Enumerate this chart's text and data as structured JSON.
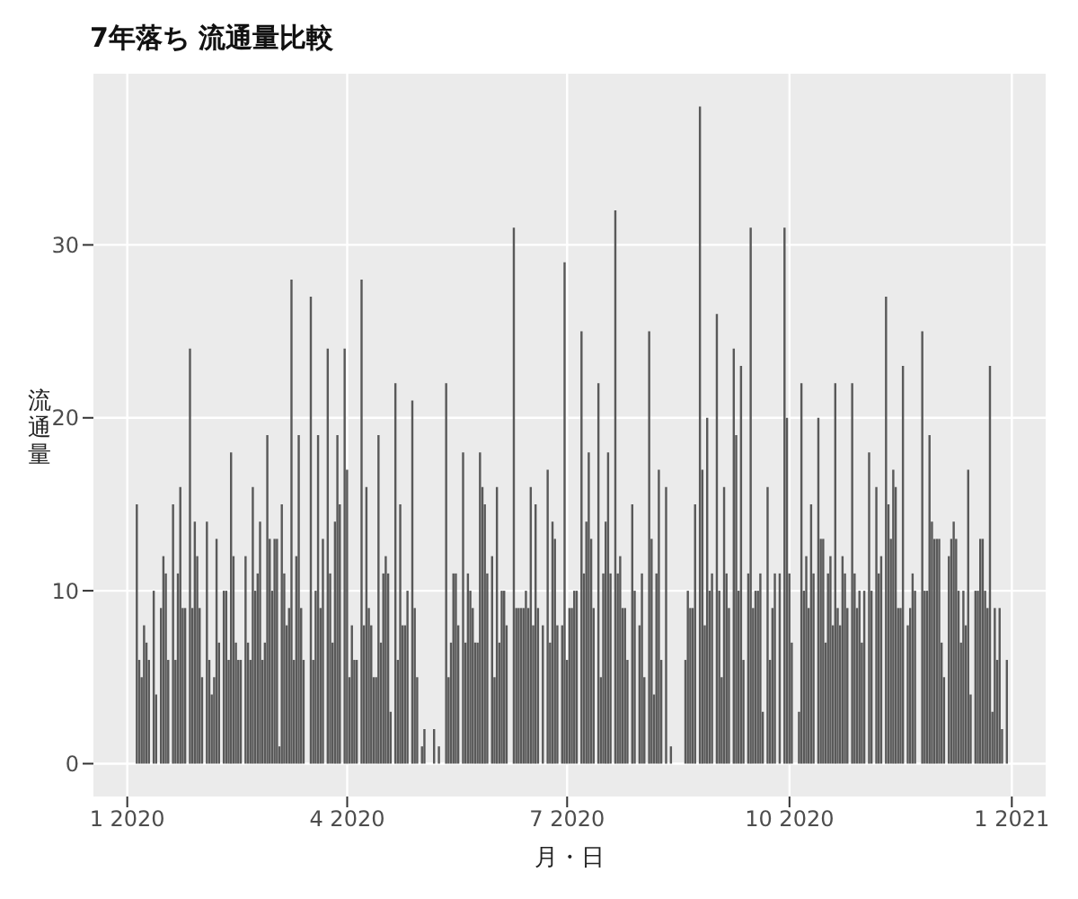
{
  "chart_data": {
    "type": "bar",
    "title": "7年落ち 流通量比較",
    "xlabel": "月・日",
    "ylabel": "流通量",
    "color": "#595959",
    "grid": true,
    "xlim": [
      "2019-12-18",
      "2021-01-15"
    ],
    "xticks": [
      {
        "value": "2020-01-01",
        "label": "1 2020"
      },
      {
        "value": "2020-04-01",
        "label": "4 2020"
      },
      {
        "value": "2020-07-01",
        "label": "7 2020"
      },
      {
        "value": "2020-10-01",
        "label": "10 2020"
      },
      {
        "value": "2021-01-01",
        "label": "1 2021"
      }
    ],
    "ylim": [
      -1.9,
      39.9
    ],
    "yticks": [
      0,
      10,
      20,
      30
    ],
    "x": [
      "2020-01-05",
      "2020-01-06",
      "2020-01-07",
      "2020-01-08",
      "2020-01-09",
      "2020-01-10",
      "2020-01-11",
      "2020-01-12",
      "2020-01-13",
      "2020-01-14",
      "2020-01-15",
      "2020-01-16",
      "2020-01-17",
      "2020-01-18",
      "2020-01-19",
      "2020-01-20",
      "2020-01-21",
      "2020-01-22",
      "2020-01-23",
      "2020-01-24",
      "2020-01-25",
      "2020-01-26",
      "2020-01-27",
      "2020-01-28",
      "2020-01-29",
      "2020-01-30",
      "2020-01-31",
      "2020-02-01",
      "2020-02-02",
      "2020-02-03",
      "2020-02-04",
      "2020-02-05",
      "2020-02-06",
      "2020-02-07",
      "2020-02-08",
      "2020-02-09",
      "2020-02-10",
      "2020-02-11",
      "2020-02-12",
      "2020-02-13",
      "2020-02-14",
      "2020-02-15",
      "2020-02-16",
      "2020-02-17",
      "2020-02-18",
      "2020-02-19",
      "2020-02-20",
      "2020-02-21",
      "2020-02-22",
      "2020-02-23",
      "2020-02-24",
      "2020-02-25",
      "2020-02-26",
      "2020-02-27",
      "2020-02-28",
      "2020-02-29",
      "2020-03-01",
      "2020-03-02",
      "2020-03-03",
      "2020-03-04",
      "2020-03-05",
      "2020-03-06",
      "2020-03-07",
      "2020-03-08",
      "2020-03-09",
      "2020-03-10",
      "2020-03-11",
      "2020-03-12",
      "2020-03-13",
      "2020-03-14",
      "2020-03-15",
      "2020-03-16",
      "2020-03-17",
      "2020-03-18",
      "2020-03-19",
      "2020-03-20",
      "2020-03-21",
      "2020-03-22",
      "2020-03-23",
      "2020-03-24",
      "2020-03-25",
      "2020-03-26",
      "2020-03-27",
      "2020-03-28",
      "2020-03-29",
      "2020-03-30",
      "2020-03-31",
      "2020-04-01",
      "2020-04-02",
      "2020-04-03",
      "2020-04-04",
      "2020-04-05",
      "2020-04-06",
      "2020-04-07",
      "2020-04-08",
      "2020-04-09",
      "2020-04-10",
      "2020-04-11",
      "2020-04-12",
      "2020-04-13",
      "2020-04-14",
      "2020-04-15",
      "2020-04-16",
      "2020-04-17",
      "2020-04-18",
      "2020-04-19",
      "2020-04-20",
      "2020-04-21",
      "2020-04-22",
      "2020-04-23",
      "2020-04-24",
      "2020-04-25",
      "2020-04-26",
      "2020-04-27",
      "2020-04-28",
      "2020-04-29",
      "2020-04-30",
      "2020-05-01",
      "2020-05-02",
      "2020-05-03",
      "2020-05-04",
      "2020-05-05",
      "2020-05-06",
      "2020-05-07",
      "2020-05-08",
      "2020-05-09",
      "2020-05-10",
      "2020-05-11",
      "2020-05-12",
      "2020-05-13",
      "2020-05-14",
      "2020-05-15",
      "2020-05-16",
      "2020-05-17",
      "2020-05-18",
      "2020-05-19",
      "2020-05-20",
      "2020-05-21",
      "2020-05-22",
      "2020-05-23",
      "2020-05-24",
      "2020-05-25",
      "2020-05-26",
      "2020-05-27",
      "2020-05-28",
      "2020-05-29",
      "2020-05-30",
      "2020-05-31",
      "2020-06-01",
      "2020-06-02",
      "2020-06-03",
      "2020-06-04",
      "2020-06-05",
      "2020-06-06",
      "2020-06-07",
      "2020-06-08",
      "2020-06-09",
      "2020-06-10",
      "2020-06-11",
      "2020-06-12",
      "2020-06-13",
      "2020-06-14",
      "2020-06-15",
      "2020-06-16",
      "2020-06-17",
      "2020-06-18",
      "2020-06-19",
      "2020-06-20",
      "2020-06-21",
      "2020-06-22",
      "2020-06-23",
      "2020-06-24",
      "2020-06-25",
      "2020-06-26",
      "2020-06-27",
      "2020-06-28",
      "2020-06-29",
      "2020-06-30",
      "2020-07-01",
      "2020-07-02",
      "2020-07-03",
      "2020-07-04",
      "2020-07-05",
      "2020-07-06",
      "2020-07-07",
      "2020-07-08",
      "2020-07-09",
      "2020-07-10",
      "2020-07-11",
      "2020-07-12",
      "2020-07-13",
      "2020-07-14",
      "2020-07-15",
      "2020-07-16",
      "2020-07-17",
      "2020-07-18",
      "2020-07-19",
      "2020-07-20",
      "2020-07-21",
      "2020-07-22",
      "2020-07-23",
      "2020-07-24",
      "2020-07-25",
      "2020-07-26",
      "2020-07-27",
      "2020-07-28",
      "2020-07-29",
      "2020-07-30",
      "2020-07-31",
      "2020-08-01",
      "2020-08-02",
      "2020-08-03",
      "2020-08-04",
      "2020-08-05",
      "2020-08-06",
      "2020-08-07",
      "2020-08-08",
      "2020-08-09",
      "2020-08-10",
      "2020-08-11",
      "2020-08-12",
      "2020-08-13",
      "2020-08-14",
      "2020-08-15",
      "2020-08-16",
      "2020-08-17",
      "2020-08-18",
      "2020-08-19",
      "2020-08-20",
      "2020-08-21",
      "2020-08-22",
      "2020-08-23",
      "2020-08-24",
      "2020-08-25",
      "2020-08-26",
      "2020-08-27",
      "2020-08-28",
      "2020-08-29",
      "2020-08-30",
      "2020-08-31",
      "2020-09-01",
      "2020-09-02",
      "2020-09-03",
      "2020-09-04",
      "2020-09-05",
      "2020-09-06",
      "2020-09-07",
      "2020-09-08",
      "2020-09-09",
      "2020-09-10",
      "2020-09-11",
      "2020-09-12",
      "2020-09-13",
      "2020-09-14",
      "2020-09-15",
      "2020-09-16",
      "2020-09-17",
      "2020-09-18",
      "2020-09-19",
      "2020-09-20",
      "2020-09-21",
      "2020-09-22",
      "2020-09-23",
      "2020-09-24",
      "2020-09-25",
      "2020-09-26",
      "2020-09-27",
      "2020-09-28",
      "2020-09-29",
      "2020-09-30",
      "2020-10-01",
      "2020-10-02",
      "2020-10-03",
      "2020-10-04",
      "2020-10-05",
      "2020-10-06",
      "2020-10-07",
      "2020-10-08",
      "2020-10-09",
      "2020-10-10",
      "2020-10-11",
      "2020-10-12",
      "2020-10-13",
      "2020-10-14",
      "2020-10-15",
      "2020-10-16",
      "2020-10-17",
      "2020-10-18",
      "2020-10-19",
      "2020-10-20",
      "2020-10-21",
      "2020-10-22",
      "2020-10-23",
      "2020-10-24",
      "2020-10-25",
      "2020-10-26",
      "2020-10-27",
      "2020-10-28",
      "2020-10-29",
      "2020-10-30",
      "2020-10-31",
      "2020-11-01",
      "2020-11-02",
      "2020-11-03",
      "2020-11-04",
      "2020-11-05",
      "2020-11-06",
      "2020-11-07",
      "2020-11-08",
      "2020-11-09",
      "2020-11-10",
      "2020-11-11",
      "2020-11-12",
      "2020-11-13",
      "2020-11-14",
      "2020-11-15",
      "2020-11-16",
      "2020-11-17",
      "2020-11-18",
      "2020-11-19",
      "2020-11-20",
      "2020-11-21",
      "2020-11-22",
      "2020-11-23",
      "2020-11-24",
      "2020-11-25",
      "2020-11-26",
      "2020-11-27",
      "2020-11-28",
      "2020-11-29",
      "2020-11-30",
      "2020-12-01",
      "2020-12-02",
      "2020-12-03",
      "2020-12-04",
      "2020-12-05",
      "2020-12-06",
      "2020-12-07",
      "2020-12-08",
      "2020-12-09",
      "2020-12-10",
      "2020-12-11",
      "2020-12-12",
      "2020-12-13",
      "2020-12-14",
      "2020-12-15",
      "2020-12-16",
      "2020-12-17",
      "2020-12-18",
      "2020-12-19",
      "2020-12-20",
      "2020-12-21",
      "2020-12-22",
      "2020-12-23",
      "2020-12-24",
      "2020-12-25",
      "2020-12-26",
      "2020-12-27",
      "2020-12-28",
      "2020-12-29",
      "2020-12-30"
    ],
    "values": [
      15,
      6,
      5,
      8,
      7,
      6,
      null,
      10,
      4,
      null,
      9,
      12,
      11,
      6,
      null,
      15,
      6,
      11,
      16,
      9,
      9,
      null,
      24,
      9,
      14,
      12,
      9,
      5,
      null,
      14,
      6,
      4,
      5,
      13,
      7,
      null,
      10,
      10,
      6,
      18,
      12,
      7,
      6,
      6,
      null,
      12,
      7,
      6,
      16,
      10,
      11,
      14,
      6,
      7,
      19,
      13,
      10,
      13,
      13,
      1,
      15,
      11,
      8,
      9,
      28,
      6,
      12,
      19,
      9,
      6,
      null,
      null,
      27,
      6,
      10,
      19,
      9,
      13,
      null,
      24,
      11,
      7,
      14,
      19,
      15,
      null,
      24,
      17,
      5,
      8,
      6,
      6,
      null,
      28,
      8,
      16,
      9,
      8,
      5,
      5,
      19,
      7,
      11,
      12,
      11,
      3,
      null,
      22,
      6,
      15,
      8,
      8,
      10,
      null,
      21,
      9,
      5,
      null,
      1,
      2,
      null,
      null,
      null,
      2,
      null,
      1,
      null,
      null,
      22,
      5,
      7,
      11,
      11,
      8,
      null,
      18,
      7,
      11,
      10,
      9,
      7,
      7,
      18,
      16,
      15,
      11,
      null,
      12,
      5,
      16,
      7,
      10,
      10,
      8,
      null,
      null,
      31,
      9,
      9,
      9,
      9,
      10,
      9,
      16,
      8,
      15,
      9,
      null,
      8,
      null,
      17,
      7,
      14,
      13,
      8,
      null,
      8,
      29,
      6,
      9,
      9,
      10,
      10,
      null,
      25,
      11,
      14,
      18,
      13,
      9,
      null,
      22,
      5,
      11,
      14,
      18,
      11,
      null,
      32,
      11,
      12,
      9,
      9,
      6,
      null,
      15,
      10,
      null,
      8,
      11,
      5,
      null,
      25,
      13,
      4,
      11,
      17,
      6,
      null,
      16,
      null,
      1,
      null,
      null,
      null,
      null,
      null,
      6,
      10,
      9,
      9,
      15,
      null,
      38,
      17,
      8,
      20,
      10,
      11,
      null,
      26,
      10,
      5,
      16,
      11,
      9,
      null,
      24,
      19,
      10,
      23,
      6,
      null,
      11,
      31,
      9,
      10,
      10,
      11,
      3,
      null,
      16,
      6,
      9,
      11,
      null,
      11,
      null,
      31,
      20,
      11,
      7,
      null,
      null,
      3,
      22,
      10,
      12,
      9,
      15,
      11,
      null,
      20,
      13,
      13,
      7,
      11,
      12,
      8,
      22,
      9,
      8,
      12,
      11,
      9,
      null,
      22,
      11,
      9,
      10,
      7,
      10,
      null,
      18,
      10,
      null,
      16,
      11,
      12,
      null,
      27,
      15,
      13,
      17,
      16,
      9,
      9,
      23,
      null,
      8,
      9,
      11,
      10,
      null,
      null,
      25,
      10,
      10,
      19,
      14,
      13,
      13,
      13,
      7,
      5,
      null,
      12,
      13,
      14,
      13,
      10,
      7,
      10,
      8,
      17,
      4,
      null,
      10,
      10,
      13,
      13,
      10,
      9,
      23,
      3,
      9,
      6,
      9,
      2,
      null,
      6
    ]
  }
}
